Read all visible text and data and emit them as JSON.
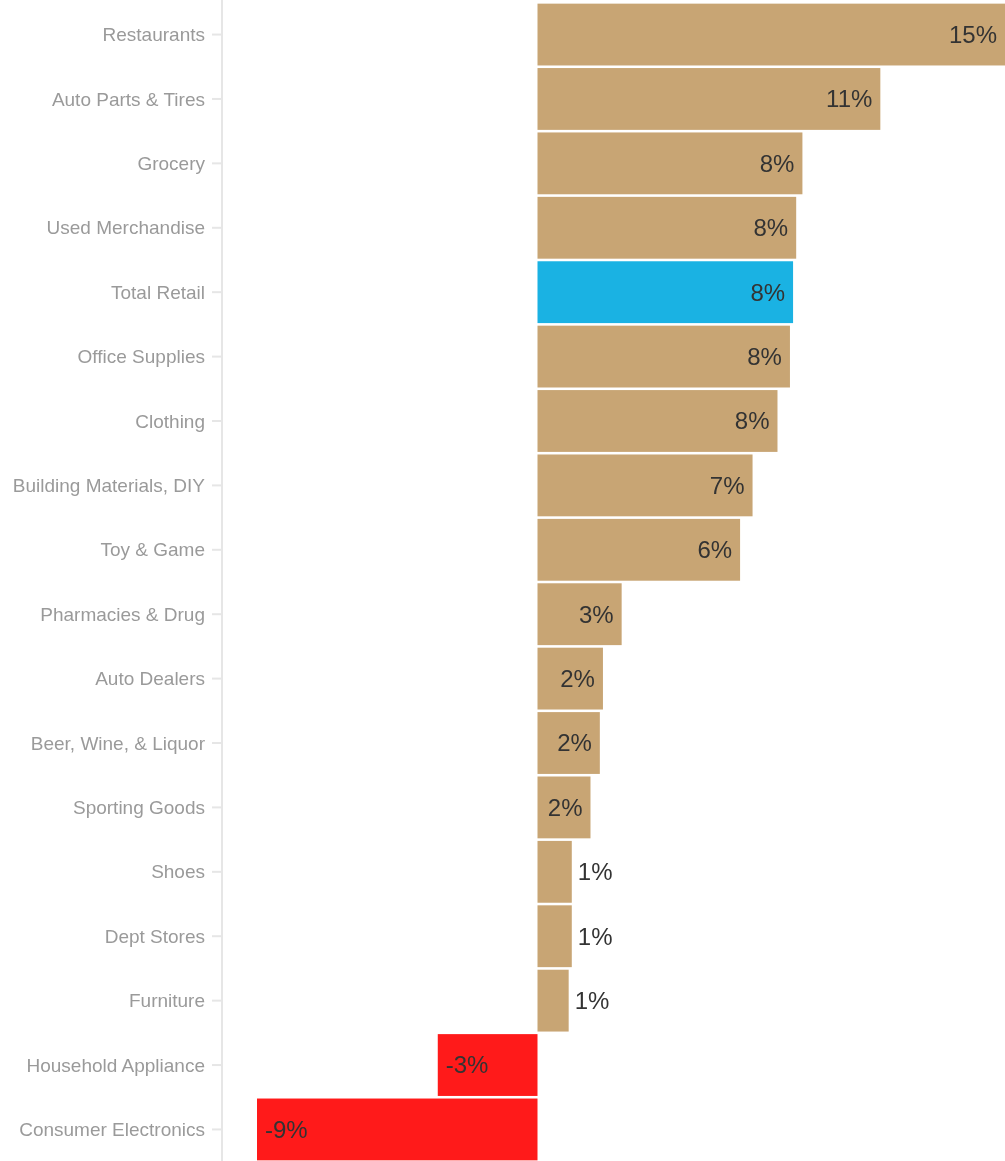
{
  "chart_data": {
    "type": "bar",
    "orientation": "horizontal",
    "categories": [
      "Restaurants",
      "Auto Parts & Tires",
      "Grocery",
      "Used Merchandise",
      "Total Retail",
      "Office Supplies",
      "Clothing",
      "Building Materials, DIY",
      "Toy & Game",
      "Pharmacies & Drug",
      "Auto Dealers",
      "Beer, Wine, & Liquor",
      "Sporting Goods",
      "Shoes",
      "Dept Stores",
      "Furniture",
      "Household Appliance",
      "Consumer Electronics"
    ],
    "values": [
      15.0,
      11.0,
      8.5,
      8.3,
      8.2,
      8.1,
      7.7,
      6.9,
      6.5,
      2.7,
      2.1,
      2.0,
      1.7,
      1.1,
      1.1,
      1.0,
      -3.2,
      -9.0
    ],
    "value_labels": [
      "15%",
      "11%",
      "8%",
      "8%",
      "8%",
      "8%",
      "8%",
      "7%",
      "6%",
      "3%",
      "2%",
      "2%",
      "2%",
      "1%",
      "1%",
      "1%",
      "-3%",
      "-9%"
    ],
    "colors": [
      "#c8a574",
      "#c8a574",
      "#c8a574",
      "#c8a574",
      "#1ab2e3",
      "#c8a574",
      "#c8a574",
      "#c8a574",
      "#c8a574",
      "#c8a574",
      "#c8a574",
      "#c8a574",
      "#c8a574",
      "#c8a574",
      "#c8a574",
      "#c8a574",
      "#ff1a1a",
      "#ff1a1a"
    ],
    "grid": false
  }
}
